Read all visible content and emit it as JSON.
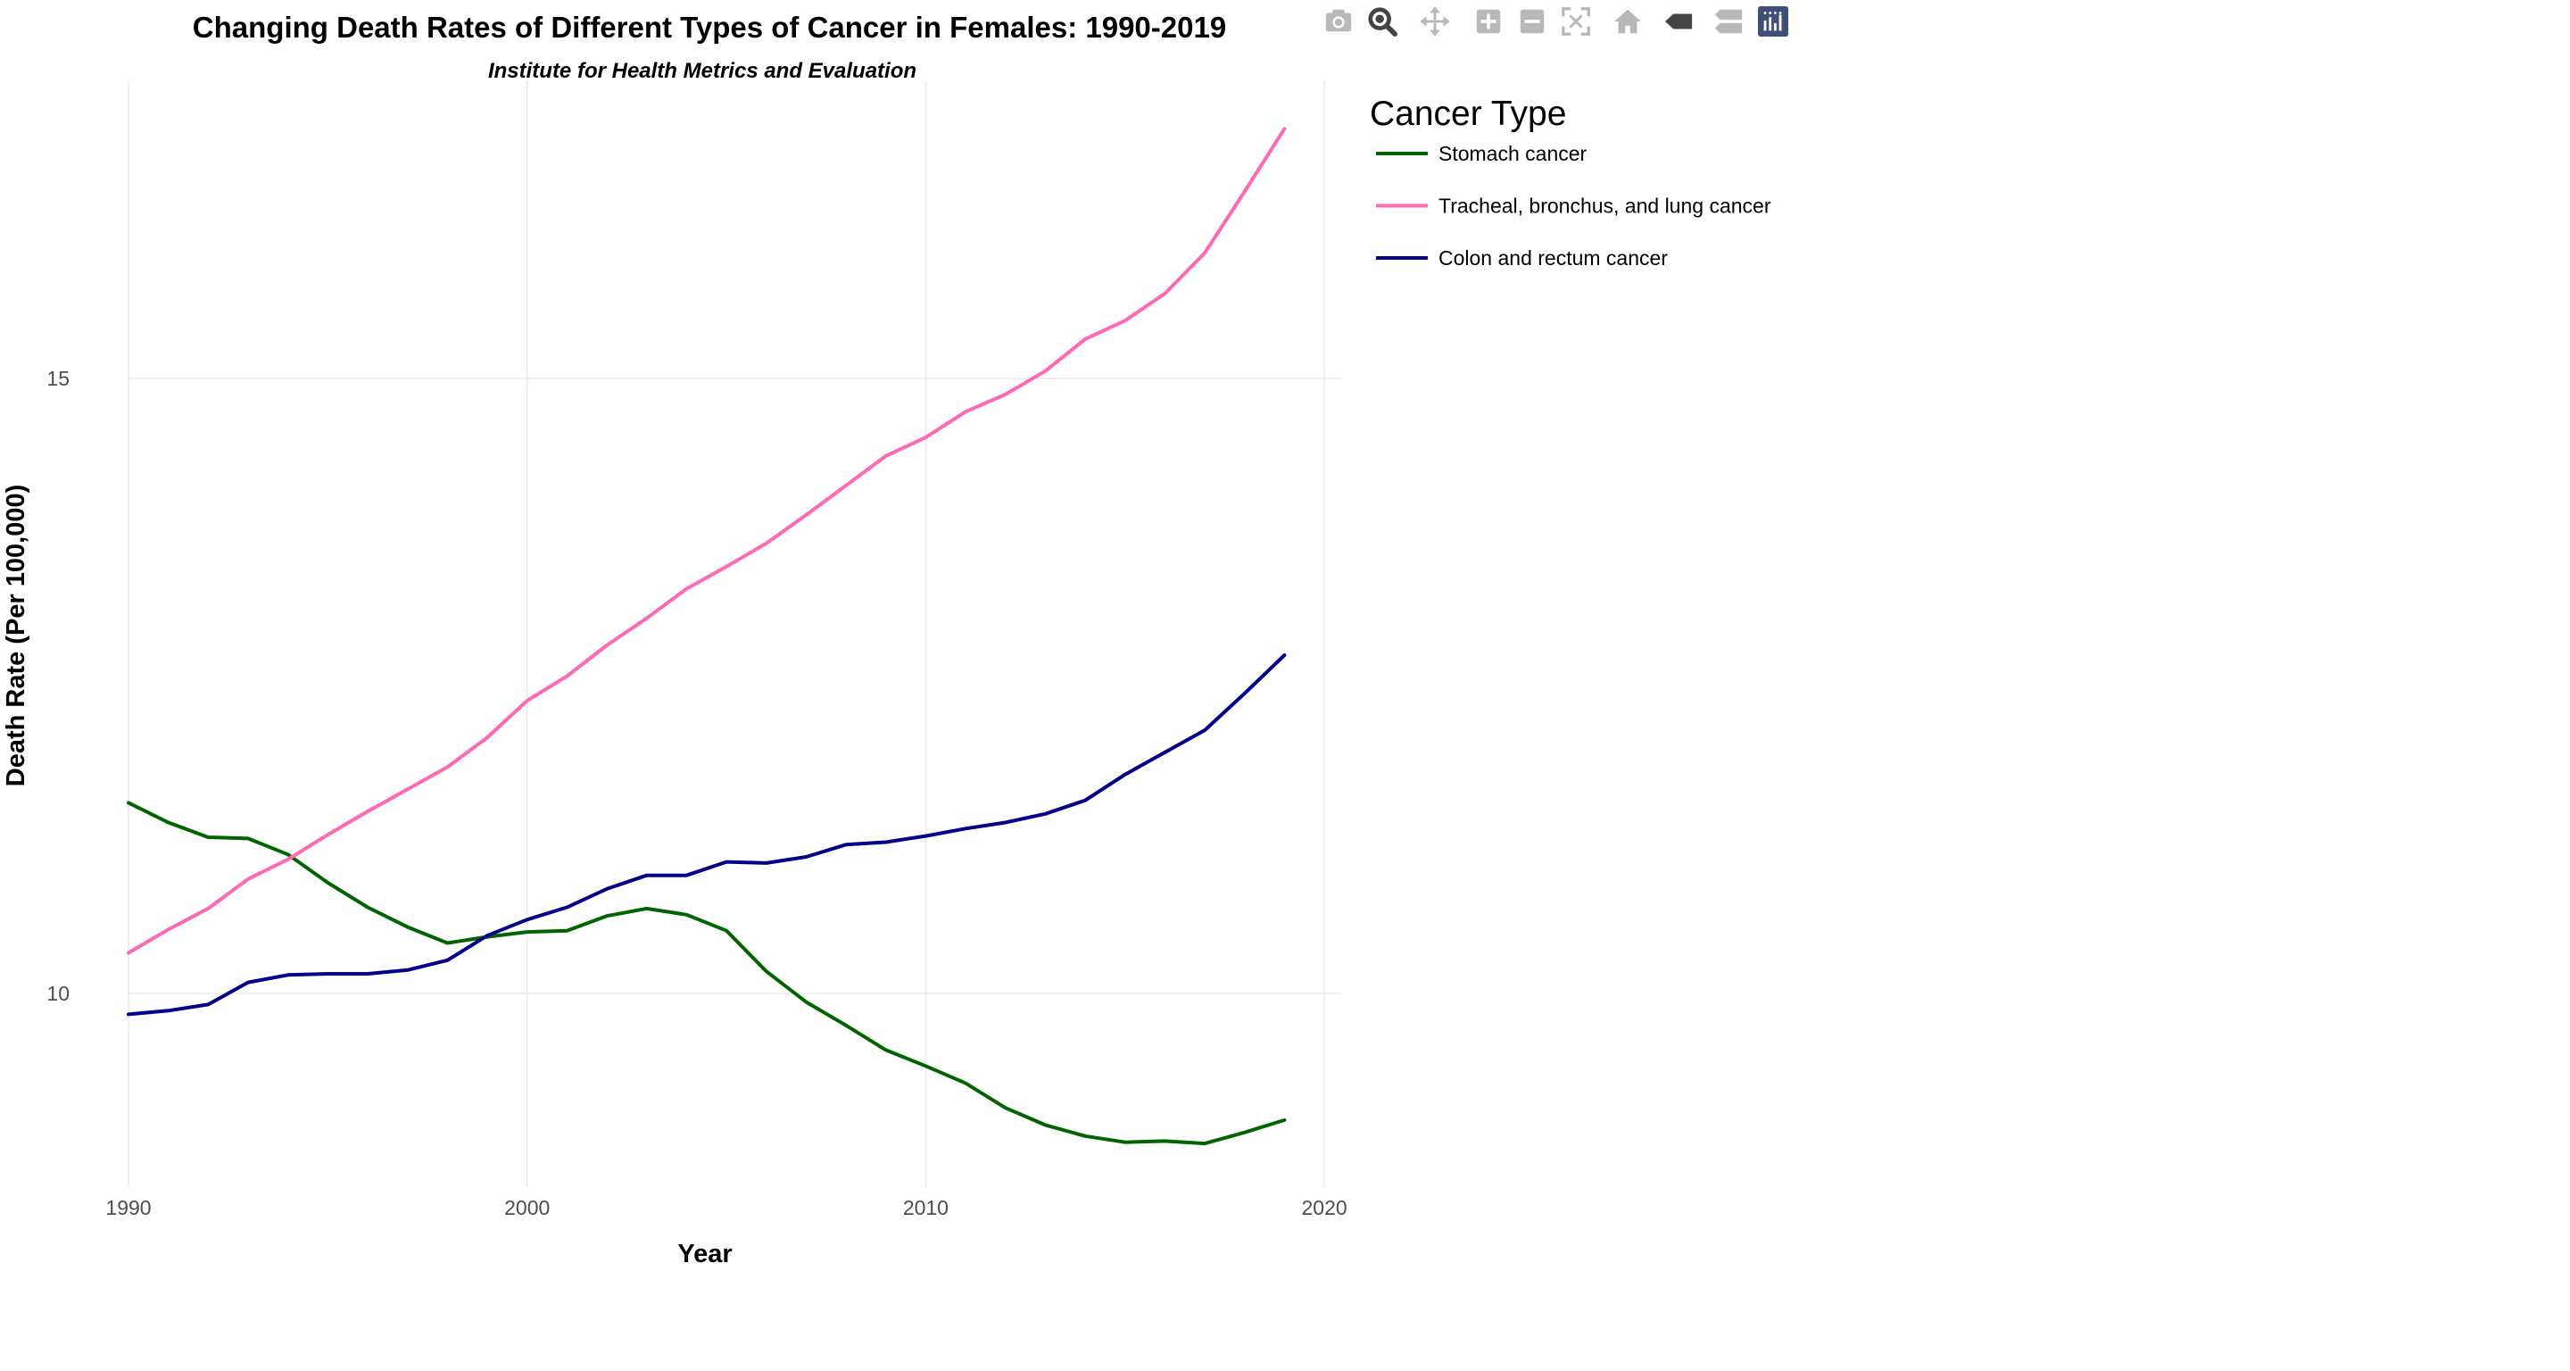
{
  "modebar": {
    "buttons": [
      {
        "icon": "camera-icon",
        "name": "download-png-button"
      },
      {
        "icon": "zoom-icon",
        "name": "zoom-button"
      },
      {
        "icon": "pan-icon",
        "name": "pan-button"
      },
      {
        "icon": "zoom-in-icon",
        "name": "zoom-in-button"
      },
      {
        "icon": "zoom-out-icon",
        "name": "zoom-out-button"
      },
      {
        "icon": "autoscale-icon",
        "name": "autoscale-button"
      },
      {
        "icon": "home-icon",
        "name": "reset-axes-button"
      },
      {
        "icon": "hover-closest-icon",
        "name": "hover-closest-button"
      },
      {
        "icon": "hover-compare-icon",
        "name": "hover-compare-button"
      },
      {
        "icon": "plotly-logo-icon",
        "name": "plotly-logo-link"
      }
    ],
    "active_color": "#444444",
    "inactive_color": "#b8b8b8",
    "logo_color": "#3f4f75"
  },
  "chart_data": {
    "type": "line",
    "title": "Changing Death Rates of Different Types of Cancer in Females: 1990-2019",
    "subtitle": "Institute for Health Metrics and Evaluation",
    "xlabel": "Year",
    "ylabel": "Death Rate (Per 100,000)",
    "x_ticks": [
      1990,
      2000,
      2010,
      2020
    ],
    "y_ticks": [
      10,
      15
    ],
    "xlim": [
      1990,
      2020
    ],
    "ylim": [
      8.5,
      17.3
    ],
    "grid": true,
    "legend": {
      "title": "Cancer Type",
      "position": "right"
    },
    "x": [
      1990,
      1991,
      1992,
      1993,
      1994,
      1995,
      1996,
      1997,
      1998,
      1999,
      2000,
      2001,
      2002,
      2003,
      2004,
      2005,
      2006,
      2007,
      2008,
      2009,
      2010,
      2011,
      2012,
      2013,
      2014,
      2015,
      2016,
      2017,
      2018,
      2019
    ],
    "series": [
      {
        "name": "Stomach cancer",
        "color": "#006400",
        "values": [
          11.55,
          11.39,
          11.27,
          11.26,
          11.13,
          10.9,
          10.7,
          10.54,
          10.41,
          10.46,
          10.5,
          10.51,
          10.63,
          10.69,
          10.64,
          10.51,
          10.18,
          9.93,
          9.74,
          9.54,
          9.41,
          9.27,
          9.07,
          8.93,
          8.84,
          8.79,
          8.8,
          8.78,
          8.87,
          8.97
        ]
      },
      {
        "name": "Tracheal, bronchus, and lung cancer",
        "color": "#ff69b4",
        "values": [
          10.33,
          10.52,
          10.69,
          10.93,
          11.09,
          11.29,
          11.48,
          11.66,
          11.84,
          12.08,
          12.38,
          12.58,
          12.83,
          13.05,
          13.29,
          13.47,
          13.66,
          13.89,
          14.13,
          14.37,
          14.52,
          14.73,
          14.87,
          15.06,
          15.32,
          15.47,
          15.69,
          16.02,
          16.52,
          17.03
        ]
      },
      {
        "name": "Colon and rectum cancer",
        "color": "#00008b",
        "values": [
          9.83,
          9.86,
          9.91,
          10.09,
          10.15,
          10.16,
          10.16,
          10.19,
          10.27,
          10.47,
          10.6,
          10.7,
          10.85,
          10.96,
          10.96,
          11.07,
          11.06,
          11.11,
          11.21,
          11.23,
          11.28,
          11.34,
          11.39,
          11.46,
          11.57,
          11.78,
          11.96,
          12.14,
          12.44,
          12.75
        ]
      }
    ]
  }
}
